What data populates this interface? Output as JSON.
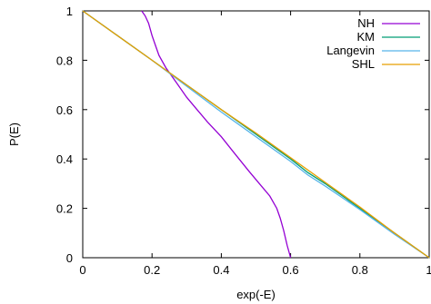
{
  "chart_data": {
    "type": "line",
    "title": "",
    "xlabel": "exp(-E)",
    "ylabel": "P(E)",
    "xlim": [
      0,
      1
    ],
    "ylim": [
      0,
      1
    ],
    "xticks": [
      0,
      0.2,
      0.4,
      0.6,
      0.8,
      1
    ],
    "yticks": [
      0,
      0.2,
      0.4,
      0.6,
      0.8,
      1
    ],
    "xtick_labels": [
      "0",
      "0.2",
      "0.4",
      "0.6",
      "0.8",
      "1"
    ],
    "ytick_labels": [
      "0",
      "0.2",
      "0.4",
      "0.6",
      "0.8",
      "1"
    ],
    "grid": false,
    "legend": "top-right",
    "series": [
      {
        "name": "NH",
        "color": "#9400d3",
        "x": [
          0.17,
          0.18,
          0.19,
          0.2,
          0.21,
          0.22,
          0.24,
          0.27,
          0.3,
          0.33,
          0.36,
          0.4,
          0.44,
          0.48,
          0.51,
          0.54,
          0.56,
          0.57,
          0.58,
          0.59,
          0.6
        ],
        "y": [
          1.0,
          0.98,
          0.95,
          0.9,
          0.86,
          0.82,
          0.77,
          0.71,
          0.65,
          0.6,
          0.55,
          0.49,
          0.42,
          0.35,
          0.3,
          0.25,
          0.2,
          0.16,
          0.11,
          0.05,
          0.0
        ]
      },
      {
        "name": "KM",
        "color": "#009e73",
        "x": [
          0,
          0.1,
          0.2,
          0.3,
          0.4,
          0.5,
          0.6,
          0.65,
          0.7,
          0.8,
          0.9,
          1
        ],
        "y": [
          1,
          0.9,
          0.8,
          0.7,
          0.6,
          0.5,
          0.4,
          0.345,
          0.3,
          0.2,
          0.1,
          0
        ]
      },
      {
        "name": "Langevin",
        "color": "#56b4e9",
        "x": [
          0,
          0.1,
          0.2,
          0.3,
          0.4,
          0.5,
          0.6,
          0.65,
          0.7,
          0.8,
          0.9,
          1
        ],
        "y": [
          1,
          0.9,
          0.8,
          0.695,
          0.59,
          0.49,
          0.39,
          0.335,
          0.29,
          0.195,
          0.095,
          0
        ]
      },
      {
        "name": "SHL",
        "color": "#e69f00",
        "x": [
          0,
          0.1,
          0.2,
          0.3,
          0.4,
          0.5,
          0.6,
          0.7,
          0.8,
          0.9,
          1
        ],
        "y": [
          1,
          0.9,
          0.8,
          0.7,
          0.6,
          0.505,
          0.405,
          0.305,
          0.205,
          0.1,
          0
        ]
      }
    ]
  }
}
